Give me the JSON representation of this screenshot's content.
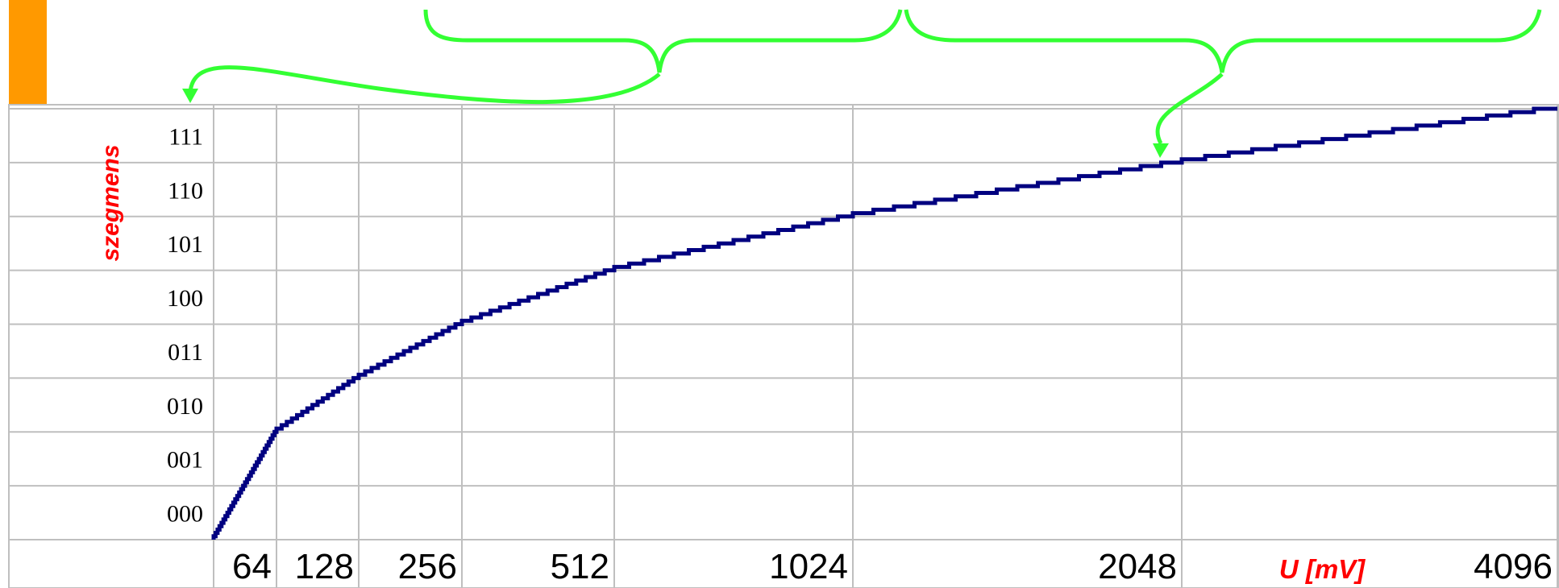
{
  "colors": {
    "accent_bar": "#FF9900",
    "curve": "#000080",
    "annotation": "#33FF33",
    "axis_title": "#FF0000",
    "grid": "#BFBFBF"
  },
  "chart_data": {
    "type": "line",
    "title": "",
    "ylabel": "szegmens",
    "xlabel": "U [mV]",
    "xlim": [
      0,
      4096
    ],
    "ylim": [
      0,
      8
    ],
    "grid": true,
    "legend": "none",
    "x_tick_labels": [
      "64",
      "128",
      "256",
      "512",
      "1024",
      "2048",
      "4096"
    ],
    "y_tick_labels": [
      "000",
      "001",
      "010",
      "011",
      "100",
      "101",
      "110",
      "111"
    ],
    "series": [
      {
        "x": [
          0,
          64,
          128,
          256,
          512,
          1024,
          2048,
          4096
        ],
        "y": [
          0,
          2,
          3,
          4,
          5,
          6,
          7,
          8
        ]
      }
    ]
  }
}
